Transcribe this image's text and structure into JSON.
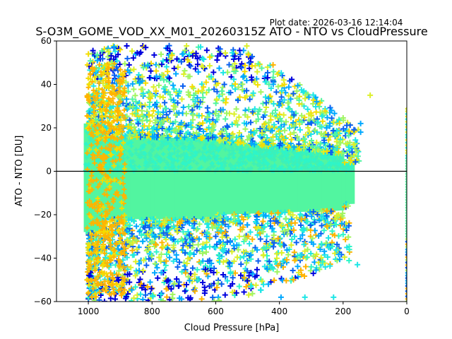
{
  "chart_data": {
    "type": "scatter",
    "title": "S-O3M_GOME_VOD_XX_M01_20260315Z ATO - NTO vs CloudPressure",
    "subtitle": "Plot date: 2026-03-16 12:14:04",
    "xlabel": "Cloud Pressure [hPa]",
    "ylabel": "ATO - NTO [DU]",
    "xlim": [
      1100,
      0
    ],
    "ylim": [
      -60,
      60
    ],
    "x_inverted": true,
    "xticks": [
      1000,
      800,
      600,
      400,
      200,
      0
    ],
    "xtick_labels": [
      "1000",
      "800",
      "600",
      "400",
      "200",
      "0"
    ],
    "yticks": [
      60,
      40,
      20,
      0,
      -20,
      -40,
      -60
    ],
    "ytick_labels": [
      "60",
      "40",
      "20",
      "0",
      "−20",
      "−40",
      "−60"
    ],
    "reference_line": {
      "y": 0,
      "color": "#000000"
    },
    "marker": "+",
    "grid": false,
    "legend": "none",
    "colormap": [
      "#0000dd",
      "#0a60f0",
      "#00a8ff",
      "#1ee6e6",
      "#2ef5c8",
      "#52f5a0",
      "#a0f560",
      "#dcf02a",
      "#f5dc00",
      "#ffb400"
    ],
    "point_clouds": [
      {
        "name": "dense-core",
        "x_range": [
          1010,
          170
        ],
        "y_range": [
          -22,
          18
        ],
        "dominant_color": "#52f5a0",
        "description": "very dense band of points centered near 0 DU"
      },
      {
        "name": "upper-spread",
        "x_range": [
          1000,
          150
        ],
        "y_range": [
          18,
          58
        ],
        "dominant_color": "#dcf02a",
        "description": "scattered yellow-green and cyan points above core"
      },
      {
        "name": "lower-spread",
        "x_range": [
          1000,
          180
        ],
        "y_range": [
          -60,
          -22
        ],
        "dominant_color": "#1ee6e6",
        "description": "scattered cyan/orange/blue points below core"
      },
      {
        "name": "high-pressure-orange",
        "x_range": [
          1000,
          880
        ],
        "y_range": [
          -55,
          50
        ],
        "dominant_color": "#ffb400",
        "description": "orange points along left edge near 900-1000 hPa"
      },
      {
        "name": "zero-pressure-column",
        "x_range": [
          2,
          0
        ],
        "y_range": [
          -60,
          30
        ],
        "dominant_color": "#52f5a0",
        "description": "narrow column of points at 0 hPa"
      }
    ],
    "notable_points": [
      {
        "x": 115,
        "y": 35,
        "color": "#dcf02a"
      },
      {
        "x": 420,
        "y": 49,
        "color": "#ffb400"
      },
      {
        "x": 145,
        "y": 22,
        "color": "#00a8ff"
      },
      {
        "x": 145,
        "y": 18,
        "color": "#00a8ff"
      },
      {
        "x": 155,
        "y": -43,
        "color": "#1ee6e6"
      },
      {
        "x": 230,
        "y": -58,
        "color": "#1ee6e6"
      },
      {
        "x": 320,
        "y": -58,
        "color": "#1ee6e6"
      },
      {
        "x": 395,
        "y": -58,
        "color": "#00a8ff"
      },
      {
        "x": 535,
        "y": -56,
        "color": "#0000dd"
      },
      {
        "x": 820,
        "y": 57,
        "color": "#0000dd"
      },
      {
        "x": 540,
        "y": 53,
        "color": "#0000dd"
      },
      {
        "x": 900,
        "y": 56,
        "color": "#f5dc00"
      }
    ]
  }
}
